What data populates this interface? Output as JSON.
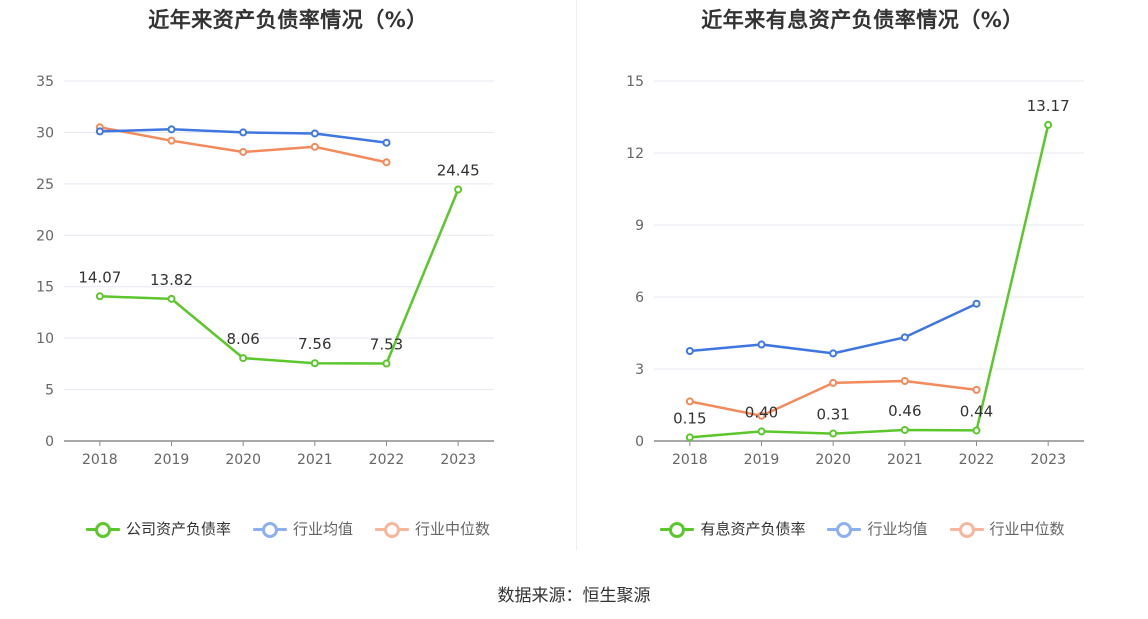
{
  "source_text": "数据来源：恒生聚源",
  "colors": {
    "company": "#5cc72c",
    "average": "#3f76e0",
    "median": "#f28a5c",
    "grid": "#e6e8f0",
    "axis": "#8c8c8c",
    "tick": "#666666",
    "legend_average_light": "#8fb0f0",
    "legend_median_light": "#f7b79c"
  },
  "chart_data": [
    {
      "type": "line",
      "title": "近年来资产负债率情况（%）",
      "categories": [
        "2018",
        "2019",
        "2020",
        "2021",
        "2022",
        "2023"
      ],
      "ylim": [
        0,
        35
      ],
      "yticks": [
        0,
        5,
        10,
        15,
        20,
        25,
        30,
        35
      ],
      "grid": true,
      "legend_position": "bottom",
      "series": [
        {
          "name": "公司资产负债率",
          "role": "company",
          "values": [
            14.07,
            13.82,
            8.06,
            7.56,
            7.53,
            24.45
          ],
          "labels": [
            "14.07",
            "13.82",
            "8.06",
            "7.56",
            "7.53",
            "24.45"
          ]
        },
        {
          "name": "行业均值",
          "role": "average",
          "values": [
            30.1,
            30.3,
            30.0,
            29.9,
            29.0,
            null
          ]
        },
        {
          "name": "行业中位数",
          "role": "median",
          "values": [
            30.5,
            29.2,
            28.1,
            28.6,
            27.1,
            null
          ]
        }
      ]
    },
    {
      "type": "line",
      "title": "近年来有息资产负债率情况（%）",
      "categories": [
        "2018",
        "2019",
        "2020",
        "2021",
        "2022",
        "2023"
      ],
      "ylim": [
        0,
        15
      ],
      "yticks": [
        0,
        3,
        6,
        9,
        12,
        15
      ],
      "grid": true,
      "legend_position": "bottom",
      "series": [
        {
          "name": "有息资产负债率",
          "role": "company",
          "values": [
            0.15,
            0.4,
            0.31,
            0.46,
            0.44,
            13.17
          ],
          "labels": [
            "0.15",
            "0.40",
            "0.31",
            "0.46",
            "0.44",
            "13.17"
          ]
        },
        {
          "name": "行业均值",
          "role": "average",
          "values": [
            3.75,
            4.02,
            3.65,
            4.32,
            5.72,
            null
          ]
        },
        {
          "name": "行业中位数",
          "role": "median",
          "values": [
            1.65,
            1.05,
            2.42,
            2.5,
            2.13,
            null
          ]
        }
      ]
    }
  ]
}
